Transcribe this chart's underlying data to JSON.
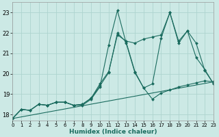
{
  "xlabel": "Humidex (Indice chaleur)",
  "x_ticks": [
    0,
    1,
    2,
    3,
    4,
    5,
    6,
    7,
    8,
    9,
    10,
    11,
    12,
    13,
    14,
    15,
    16,
    17,
    18,
    19,
    20,
    21,
    22,
    23
  ],
  "xlim": [
    0,
    23
  ],
  "ylim": [
    17.7,
    23.5
  ],
  "y_ticks": [
    18,
    19,
    20,
    21,
    22,
    23
  ],
  "bg_color": "#cce9e5",
  "grid_color": "#aed4cf",
  "line_color": "#1a6b5e",
  "line1_x": [
    0,
    1,
    2,
    3,
    4,
    5,
    6,
    7,
    8,
    9,
    10,
    11,
    12,
    13,
    14,
    15,
    16,
    17,
    18,
    19,
    20,
    21,
    22,
    23
  ],
  "line1_y": [
    17.8,
    18.25,
    18.2,
    18.5,
    18.45,
    18.6,
    18.6,
    18.45,
    18.45,
    18.75,
    19.35,
    21.4,
    23.1,
    21.5,
    20.05,
    19.3,
    18.75,
    19.05,
    19.2,
    19.35,
    19.45,
    19.55,
    19.65,
    19.6
  ],
  "line2_x": [
    0,
    1,
    2,
    3,
    4,
    5,
    6,
    7,
    8,
    9,
    10,
    11,
    12,
    13,
    14,
    15,
    16,
    17,
    18,
    19,
    20,
    21,
    22,
    23
  ],
  "line2_y": [
    17.8,
    18.25,
    18.2,
    18.5,
    18.45,
    18.6,
    18.6,
    18.45,
    18.5,
    18.8,
    19.5,
    20.1,
    21.9,
    21.6,
    21.5,
    21.7,
    21.8,
    21.9,
    23.0,
    21.5,
    22.1,
    21.5,
    20.15,
    19.5
  ],
  "line3_x": [
    0,
    1,
    2,
    3,
    4,
    5,
    6,
    7,
    8,
    9,
    10,
    11,
    12,
    13,
    14,
    15,
    16,
    17,
    18,
    19,
    20,
    21,
    22,
    23
  ],
  "line3_y": [
    17.8,
    18.25,
    18.2,
    18.5,
    18.45,
    18.6,
    18.6,
    18.45,
    18.5,
    18.8,
    19.4,
    20.05,
    22.0,
    21.55,
    20.1,
    19.3,
    19.5,
    21.75,
    23.0,
    21.6,
    22.1,
    20.8,
    20.2,
    19.5
  ],
  "trend_x": [
    0,
    23
  ],
  "trend_y": [
    17.8,
    19.6
  ]
}
